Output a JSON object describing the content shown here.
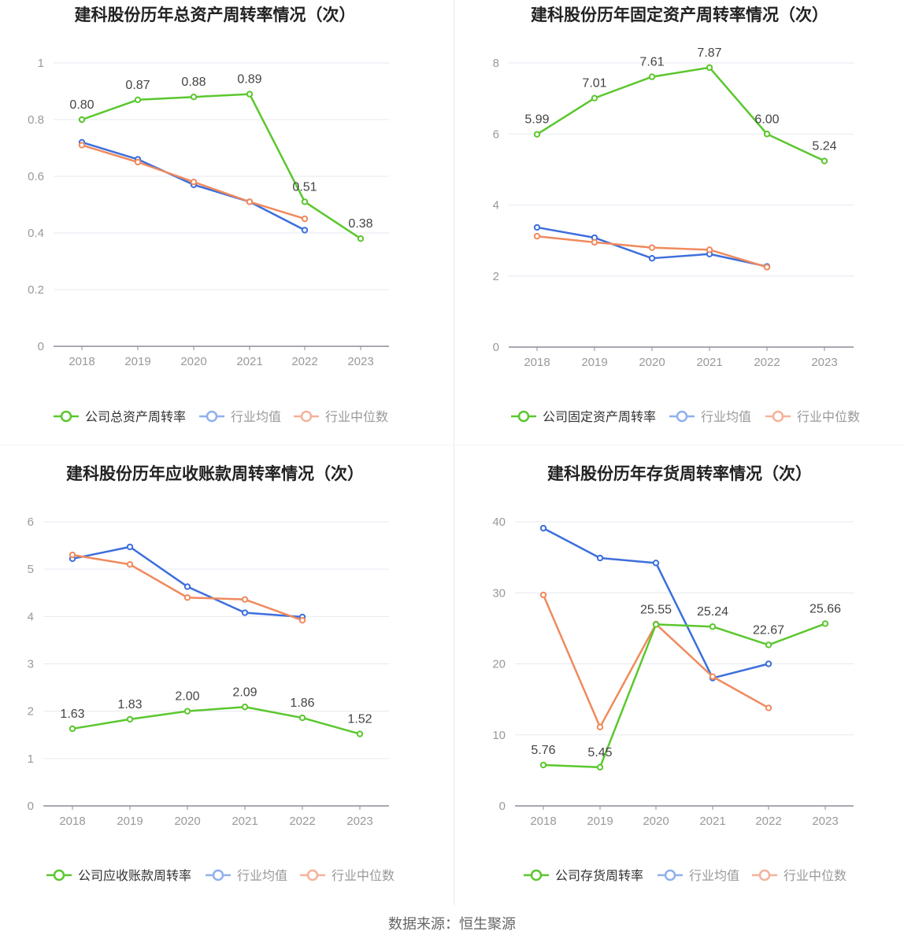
{
  "colors": {
    "company": "#5bc72e",
    "avg": "#3d6fdc",
    "median": "#f08a5d",
    "avg_legend": "#8fb0ee",
    "median_legend": "#f5b29a",
    "grid": "#e6e9f0",
    "axis": "#8c8c9c",
    "tick_text": "#999999",
    "label_text": "#444444",
    "title_text": "#222222"
  },
  "footer": {
    "source": "数据来源：恒生聚源"
  },
  "chart_data": [
    {
      "type": "line",
      "title": "建科股份历年总资产周转率情况（次）",
      "categories": [
        "2018",
        "2019",
        "2020",
        "2021",
        "2022",
        "2023"
      ],
      "ylim": [
        0,
        1
      ],
      "yticks": [
        0,
        0.2,
        0.4,
        0.6,
        0.8,
        1
      ],
      "ytick_labels": [
        "0",
        "0.2",
        "0.4",
        "0.6",
        "0.8",
        "1"
      ],
      "series": [
        {
          "name": "公司总资产周转率",
          "key": "company",
          "values": [
            0.8,
            0.87,
            0.88,
            0.89,
            0.51,
            0.38
          ],
          "labels": [
            "0.80",
            "0.87",
            "0.88",
            "0.89",
            "0.51",
            "0.38"
          ]
        },
        {
          "name": "行业均值",
          "key": "avg",
          "values": [
            0.72,
            0.66,
            0.57,
            0.51,
            0.41,
            null
          ]
        },
        {
          "name": "行业中位数",
          "key": "median",
          "values": [
            0.71,
            0.65,
            0.58,
            0.51,
            0.45,
            null
          ]
        }
      ]
    },
    {
      "type": "line",
      "title": "建科股份历年固定资产周转率情况（次）",
      "categories": [
        "2018",
        "2019",
        "2020",
        "2021",
        "2022",
        "2023"
      ],
      "ylim": [
        0,
        8
      ],
      "yticks": [
        0,
        2,
        4,
        6,
        8
      ],
      "ytick_labels": [
        "0",
        "2",
        "4",
        "6",
        "8"
      ],
      "series": [
        {
          "name": "公司固定资产周转率",
          "key": "company",
          "values": [
            5.99,
            7.01,
            7.61,
            7.87,
            6.0,
            5.24
          ],
          "labels": [
            "5.99",
            "7.01",
            "7.61",
            "7.87",
            "6.00",
            "5.24"
          ]
        },
        {
          "name": "行业均值",
          "key": "avg",
          "values": [
            3.37,
            3.08,
            2.5,
            2.62,
            2.27,
            null
          ]
        },
        {
          "name": "行业中位数",
          "key": "median",
          "values": [
            3.12,
            2.95,
            2.8,
            2.74,
            2.25,
            null
          ]
        }
      ]
    },
    {
      "type": "line",
      "title": "建科股份历年应收账款周转率情况（次）",
      "categories": [
        "2018",
        "2019",
        "2020",
        "2021",
        "2022",
        "2023"
      ],
      "ylim": [
        0,
        6
      ],
      "yticks": [
        0,
        1,
        2,
        3,
        4,
        5,
        6
      ],
      "ytick_labels": [
        "0",
        "1",
        "2",
        "3",
        "4",
        "5",
        "6"
      ],
      "series": [
        {
          "name": "公司应收账款周转率",
          "key": "company",
          "values": [
            1.63,
            1.83,
            2.0,
            2.09,
            1.86,
            1.52
          ],
          "labels": [
            "1.63",
            "1.83",
            "2.00",
            "2.09",
            "1.86",
            "1.52"
          ]
        },
        {
          "name": "行业均值",
          "key": "avg",
          "values": [
            5.22,
            5.47,
            4.63,
            4.08,
            3.99,
            null
          ]
        },
        {
          "name": "行业中位数",
          "key": "median",
          "values": [
            5.3,
            5.1,
            4.4,
            4.36,
            3.92,
            null
          ]
        }
      ]
    },
    {
      "type": "line",
      "title": "建科股份历年存货周转率情况（次）",
      "categories": [
        "2018",
        "2019",
        "2020",
        "2021",
        "2022",
        "2023"
      ],
      "ylim": [
        0,
        40
      ],
      "yticks": [
        0,
        10,
        20,
        30,
        40
      ],
      "ytick_labels": [
        "0",
        "10",
        "20",
        "30",
        "40"
      ],
      "series": [
        {
          "name": "公司存货周转率",
          "key": "company",
          "values": [
            5.76,
            5.45,
            25.55,
            25.24,
            22.67,
            25.66
          ],
          "labels": [
            "5.76",
            "5.45",
            "25.55",
            "25.24",
            "22.67",
            "25.66"
          ]
        },
        {
          "name": "行业均值",
          "key": "avg",
          "values": [
            39.1,
            34.9,
            34.2,
            18.0,
            20.0,
            null
          ]
        },
        {
          "name": "行业中位数",
          "key": "median",
          "values": [
            29.7,
            11.1,
            25.6,
            18.2,
            13.8,
            null
          ]
        }
      ]
    }
  ]
}
